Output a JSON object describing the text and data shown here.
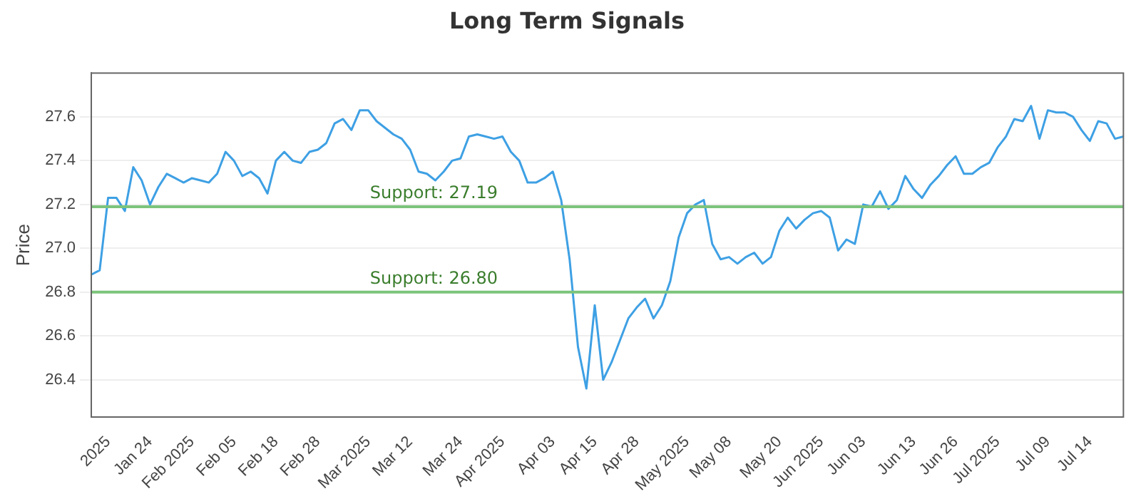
{
  "chart_data": {
    "type": "line",
    "title": "Long Term Signals",
    "ylabel": "Price",
    "categories": [
      null,
      null,
      "2025",
      null,
      null,
      null,
      null,
      "Jan 24",
      null,
      null,
      null,
      null,
      "Feb 2025",
      null,
      null,
      null,
      null,
      "Feb 05",
      null,
      null,
      null,
      null,
      "Feb 18",
      null,
      null,
      null,
      null,
      "Feb 28",
      null,
      null,
      null,
      null,
      null,
      "Mar 2025",
      null,
      null,
      null,
      null,
      "Mar 12",
      null,
      null,
      null,
      null,
      null,
      "Mar 24",
      null,
      null,
      null,
      null,
      "Apr 2025",
      null,
      null,
      null,
      null,
      null,
      "Apr 03",
      null,
      null,
      null,
      null,
      "Apr 15",
      null,
      null,
      null,
      null,
      "Apr 28",
      null,
      null,
      null,
      null,
      null,
      "May 2025",
      null,
      null,
      null,
      null,
      "May 08",
      null,
      null,
      null,
      null,
      null,
      "May 20",
      null,
      null,
      null,
      null,
      "Jun 2025",
      null,
      null,
      null,
      null,
      "Jun 03",
      null,
      null,
      null,
      null,
      null,
      "Jun 13",
      null,
      null,
      null,
      null,
      "Jun 26",
      null,
      null,
      null,
      null,
      "Jul 2025",
      null,
      null,
      null,
      null,
      null,
      "Jul 09",
      null,
      null,
      null,
      null,
      "Jul 14",
      null,
      null,
      null,
      null
    ],
    "series": [
      {
        "color": "#3ea0e4",
        "values": [
          26.88,
          26.9,
          27.23,
          27.23,
          27.17,
          27.37,
          27.31,
          27.2,
          27.28,
          27.34,
          27.32,
          27.3,
          27.32,
          27.31,
          27.3,
          27.34,
          27.44,
          27.4,
          27.33,
          27.35,
          27.32,
          27.25,
          27.4,
          27.44,
          27.4,
          27.39,
          27.44,
          27.45,
          27.48,
          27.57,
          27.59,
          27.54,
          27.63,
          27.63,
          27.58,
          27.55,
          27.52,
          27.5,
          27.45,
          27.35,
          27.34,
          27.31,
          27.35,
          27.4,
          27.41,
          27.51,
          27.52,
          27.51,
          27.5,
          27.51,
          27.44,
          27.4,
          27.3,
          27.3,
          27.32,
          27.35,
          27.22,
          26.95,
          26.55,
          26.36,
          26.74,
          26.4,
          26.48,
          26.58,
          26.68,
          26.73,
          26.77,
          26.68,
          26.74,
          26.85,
          27.05,
          27.16,
          27.2,
          27.22,
          27.02,
          26.95,
          26.96,
          26.93,
          26.96,
          26.98,
          26.93,
          26.96,
          27.08,
          27.14,
          27.09,
          27.13,
          27.16,
          27.17,
          27.14,
          26.99,
          27.04,
          27.02,
          27.2,
          27.19,
          27.26,
          27.18,
          27.22,
          27.33,
          27.27,
          27.23,
          27.29,
          27.33,
          27.38,
          27.42,
          27.34,
          27.34,
          27.37,
          27.39,
          27.46,
          27.51,
          27.59,
          27.58,
          27.65,
          27.5,
          27.63,
          27.62,
          27.62,
          27.6,
          27.54,
          27.49,
          27.58,
          27.57,
          27.5,
          27.51
        ]
      }
    ],
    "ylim": [
      26.23,
      27.8
    ],
    "yticks": [
      26.4,
      26.6,
      26.8,
      {
        "value": 27,
        "label": "27.0"
      },
      27.2,
      27.4,
      27.6
    ],
    "ref_lines": [
      {
        "axis": "y",
        "value": 27.19,
        "label": "Support: 27.19",
        "color": "#7cc47c"
      },
      {
        "axis": "y",
        "value": 26.8,
        "label": "Support: 26.80",
        "color": "#7cc47c"
      }
    ],
    "grid": "y",
    "legend": false,
    "marker": "none",
    "line_style": "solid"
  }
}
